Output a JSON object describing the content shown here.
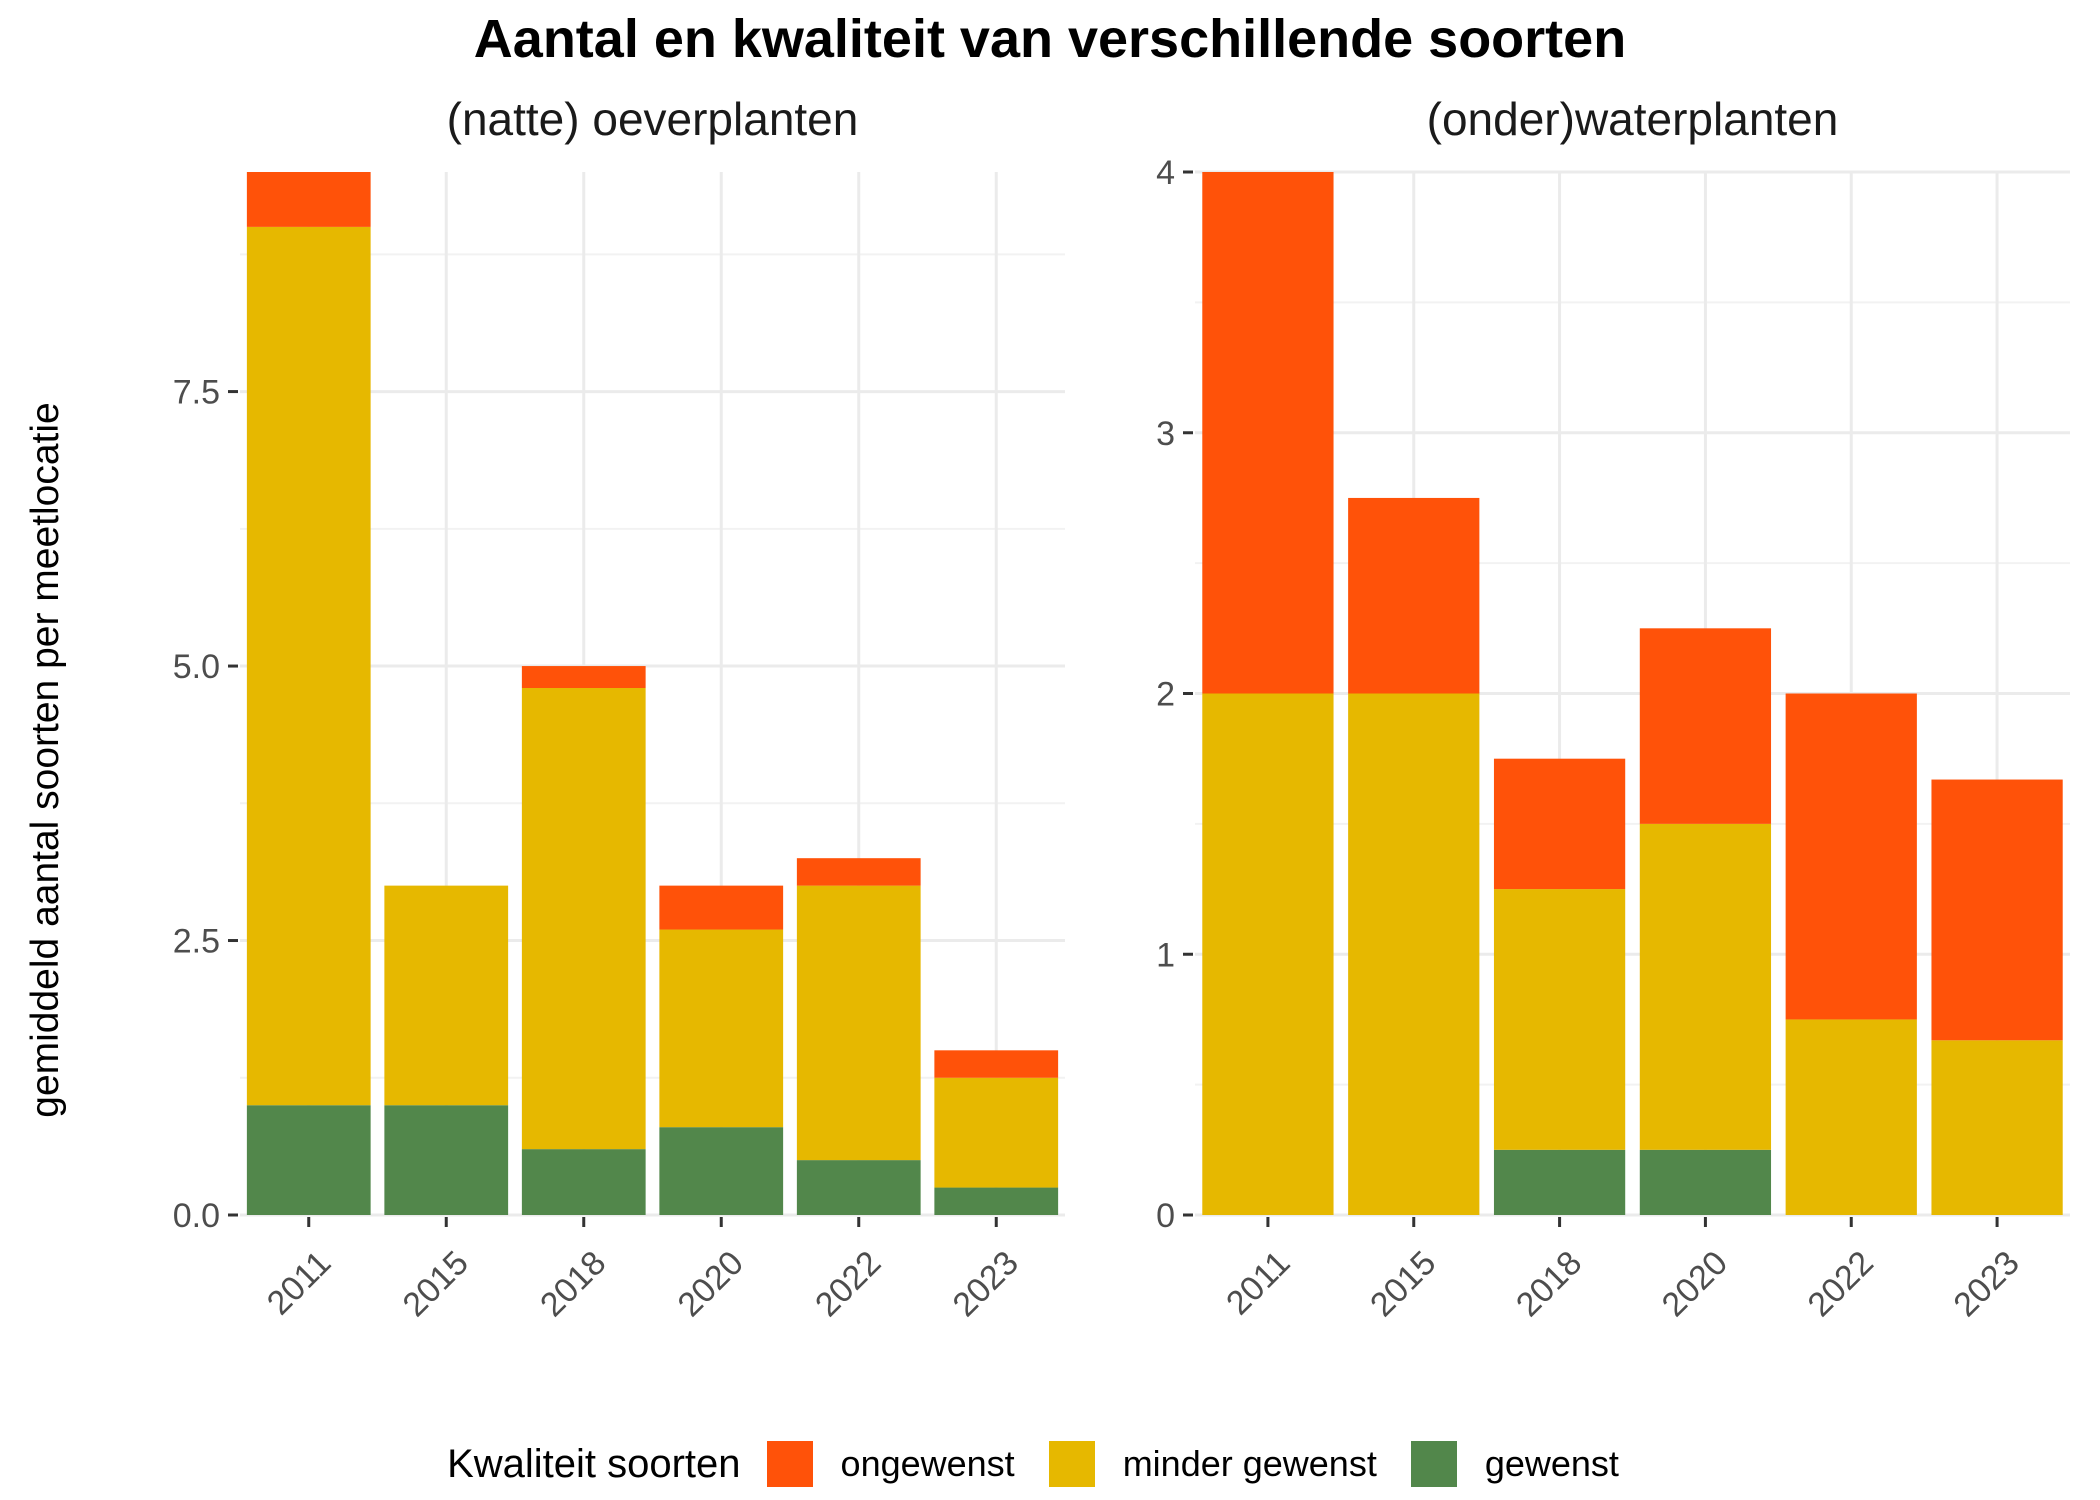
{
  "title": "Aantal en kwaliteit van verschillende soorten",
  "y_axis_label": "gemiddeld aantal soorten per meetlocatie",
  "legend": {
    "title": "Kwaliteit soorten",
    "items": [
      {
        "label": "ongewenst",
        "color": "#FF5209"
      },
      {
        "label": "minder gewenst",
        "color": "#E6B800"
      },
      {
        "label": "gewenst",
        "color": "#52874B"
      }
    ]
  },
  "chart_data": [
    {
      "type": "bar",
      "stacked": true,
      "facet_title": "(natte) oeverplanten",
      "categories": [
        "2011",
        "2015",
        "2018",
        "2020",
        "2022",
        "2023"
      ],
      "y_ticks": [
        0.0,
        2.5,
        5.0,
        7.5
      ],
      "y_tick_labels": [
        "0.0",
        "2.5",
        "5.0",
        "7.5"
      ],
      "ylim": [
        0,
        9.5
      ],
      "series": [
        {
          "name": "gewenst",
          "values": [
            1.0,
            1.0,
            0.6,
            0.8,
            0.5,
            0.25
          ]
        },
        {
          "name": "minder gewenst",
          "values": [
            8.0,
            2.0,
            4.2,
            1.8,
            2.5,
            1.0
          ]
        },
        {
          "name": "ongewenst",
          "values": [
            0.5,
            0.0,
            0.2,
            0.4,
            0.25,
            0.25
          ]
        }
      ]
    },
    {
      "type": "bar",
      "stacked": true,
      "facet_title": "(onder)waterplanten",
      "categories": [
        "2011",
        "2015",
        "2018",
        "2020",
        "2022",
        "2023"
      ],
      "y_ticks": [
        0,
        1,
        2,
        3,
        4
      ],
      "y_tick_labels": [
        "0",
        "1",
        "2",
        "3",
        "4"
      ],
      "ylim": [
        0,
        4
      ],
      "series": [
        {
          "name": "gewenst",
          "values": [
            0.0,
            0.0,
            0.25,
            0.25,
            0.0,
            0.0
          ]
        },
        {
          "name": "minder gewenst",
          "values": [
            2.0,
            2.0,
            1.0,
            1.25,
            0.75,
            0.67
          ]
        },
        {
          "name": "ongewenst",
          "values": [
            2.0,
            0.75,
            0.5,
            0.75,
            1.25,
            1.0
          ]
        }
      ]
    }
  ]
}
